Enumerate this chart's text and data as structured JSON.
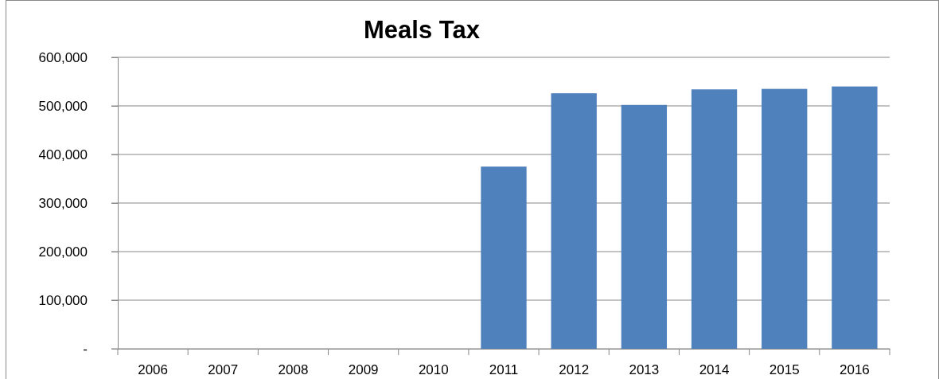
{
  "chart_data": {
    "type": "bar",
    "title": "Meals Tax",
    "categories": [
      "2006",
      "2007",
      "2008",
      "2009",
      "2010",
      "2011",
      "2012",
      "2013",
      "2014",
      "2015",
      "2016"
    ],
    "values": [
      null,
      null,
      null,
      null,
      null,
      375000,
      526000,
      502000,
      534000,
      535000,
      540000
    ],
    "color": "#4f81bd",
    "ylim": [
      0,
      600000
    ],
    "yticks": [
      {
        "value": 0,
        "label": "-"
      },
      {
        "value": 100000,
        "label": "100,000"
      },
      {
        "value": 200000,
        "label": "200,000"
      },
      {
        "value": 300000,
        "label": "300,000"
      },
      {
        "value": 400000,
        "label": "400,000"
      },
      {
        "value": 500000,
        "label": "500,000"
      },
      {
        "value": 600000,
        "label": "600,000"
      }
    ],
    "grid": "y"
  }
}
